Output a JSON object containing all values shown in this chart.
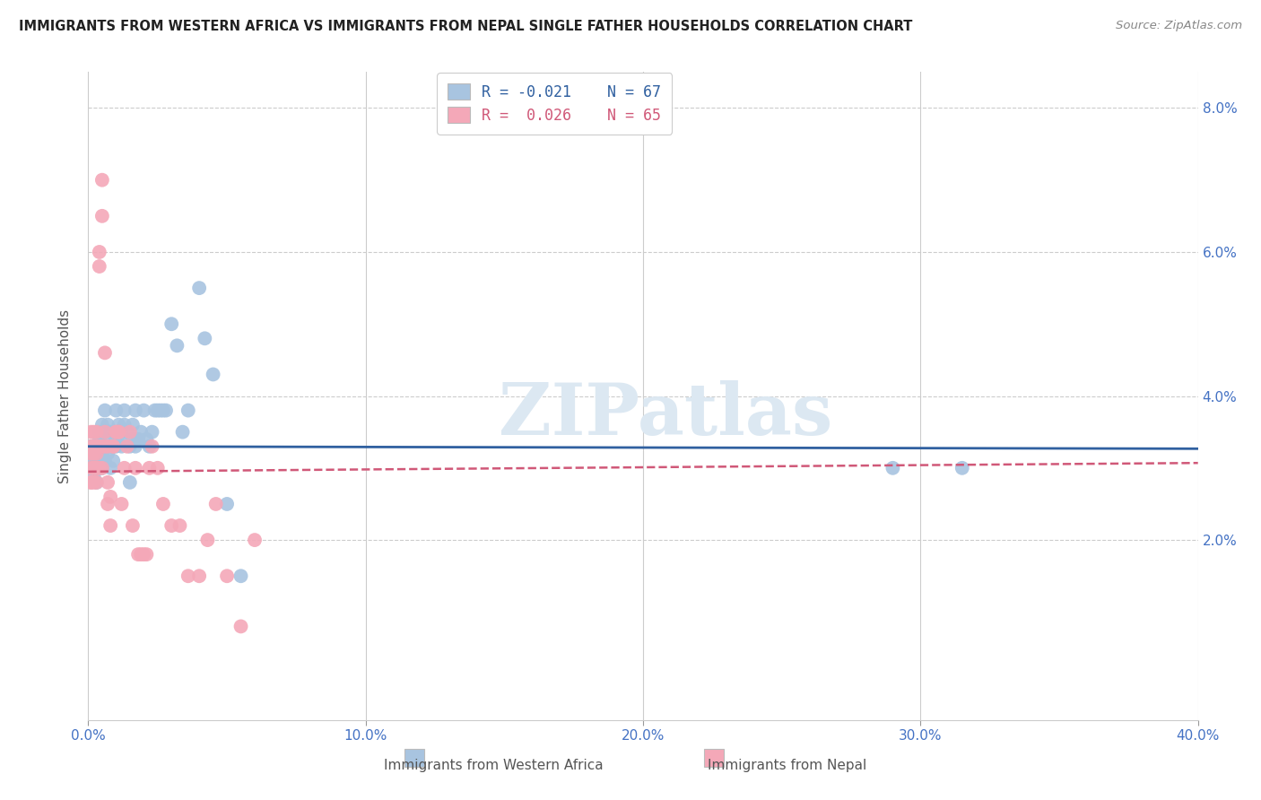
{
  "title": "IMMIGRANTS FROM WESTERN AFRICA VS IMMIGRANTS FROM NEPAL SINGLE FATHER HOUSEHOLDS CORRELATION CHART",
  "source": "Source: ZipAtlas.com",
  "ylabel": "Single Father Households",
  "legend_label_blue": "Immigrants from Western Africa",
  "legend_label_pink": "Immigrants from Nepal",
  "blue_color": "#a8c4e0",
  "pink_color": "#f4a8b8",
  "line_blue_color": "#3060a0",
  "line_pink_color": "#d05878",
  "xlim": [
    0.0,
    0.4
  ],
  "ylim": [
    -0.005,
    0.085
  ],
  "blue_x": [
    0.001,
    0.001,
    0.002,
    0.002,
    0.002,
    0.003,
    0.003,
    0.003,
    0.003,
    0.003,
    0.004,
    0.004,
    0.004,
    0.004,
    0.005,
    0.005,
    0.005,
    0.005,
    0.006,
    0.006,
    0.006,
    0.007,
    0.007,
    0.007,
    0.008,
    0.008,
    0.008,
    0.009,
    0.009,
    0.01,
    0.01,
    0.01,
    0.011,
    0.011,
    0.012,
    0.012,
    0.013,
    0.013,
    0.014,
    0.015,
    0.015,
    0.016,
    0.016,
    0.017,
    0.017,
    0.018,
    0.019,
    0.02,
    0.021,
    0.022,
    0.023,
    0.024,
    0.025,
    0.026,
    0.027,
    0.028,
    0.03,
    0.032,
    0.034,
    0.036,
    0.04,
    0.042,
    0.045,
    0.05,
    0.055,
    0.29,
    0.315
  ],
  "blue_y": [
    0.033,
    0.03,
    0.032,
    0.031,
    0.029,
    0.033,
    0.031,
    0.03,
    0.028,
    0.032,
    0.034,
    0.033,
    0.031,
    0.035,
    0.032,
    0.03,
    0.033,
    0.036,
    0.033,
    0.031,
    0.038,
    0.032,
    0.034,
    0.036,
    0.033,
    0.035,
    0.03,
    0.033,
    0.031,
    0.034,
    0.033,
    0.038,
    0.036,
    0.034,
    0.035,
    0.033,
    0.038,
    0.036,
    0.035,
    0.033,
    0.028,
    0.034,
    0.036,
    0.033,
    0.038,
    0.034,
    0.035,
    0.038,
    0.034,
    0.033,
    0.035,
    0.038,
    0.038,
    0.038,
    0.038,
    0.038,
    0.05,
    0.047,
    0.035,
    0.038,
    0.055,
    0.048,
    0.043,
    0.025,
    0.015,
    0.03,
    0.03
  ],
  "pink_x": [
    0.001,
    0.001,
    0.001,
    0.001,
    0.001,
    0.001,
    0.002,
    0.002,
    0.002,
    0.002,
    0.002,
    0.002,
    0.002,
    0.003,
    0.003,
    0.003,
    0.003,
    0.003,
    0.003,
    0.003,
    0.004,
    0.004,
    0.004,
    0.004,
    0.005,
    0.005,
    0.005,
    0.005,
    0.006,
    0.006,
    0.006,
    0.007,
    0.007,
    0.007,
    0.008,
    0.008,
    0.009,
    0.009,
    0.01,
    0.01,
    0.011,
    0.011,
    0.012,
    0.013,
    0.014,
    0.015,
    0.016,
    0.017,
    0.018,
    0.019,
    0.02,
    0.021,
    0.022,
    0.023,
    0.025,
    0.027,
    0.03,
    0.033,
    0.036,
    0.04,
    0.043,
    0.046,
    0.05,
    0.055,
    0.06
  ],
  "pink_y": [
    0.033,
    0.03,
    0.032,
    0.028,
    0.035,
    0.028,
    0.03,
    0.033,
    0.032,
    0.03,
    0.035,
    0.033,
    0.028,
    0.033,
    0.03,
    0.032,
    0.035,
    0.03,
    0.028,
    0.033,
    0.03,
    0.033,
    0.06,
    0.058,
    0.065,
    0.07,
    0.033,
    0.03,
    0.046,
    0.033,
    0.035,
    0.033,
    0.028,
    0.025,
    0.026,
    0.022,
    0.033,
    0.033,
    0.035,
    0.035,
    0.035,
    0.035,
    0.025,
    0.03,
    0.033,
    0.035,
    0.022,
    0.03,
    0.018,
    0.018,
    0.018,
    0.018,
    0.03,
    0.033,
    0.03,
    0.025,
    0.022,
    0.022,
    0.015,
    0.015,
    0.02,
    0.025,
    0.015,
    0.008,
    0.02
  ],
  "blue_line_x": [
    0.0,
    0.4
  ],
  "blue_line_y_intercept": 0.033,
  "blue_line_slope": -0.0008,
  "pink_line_x": [
    0.0,
    0.4
  ],
  "pink_line_y_intercept": 0.0295,
  "pink_line_slope": 0.003
}
